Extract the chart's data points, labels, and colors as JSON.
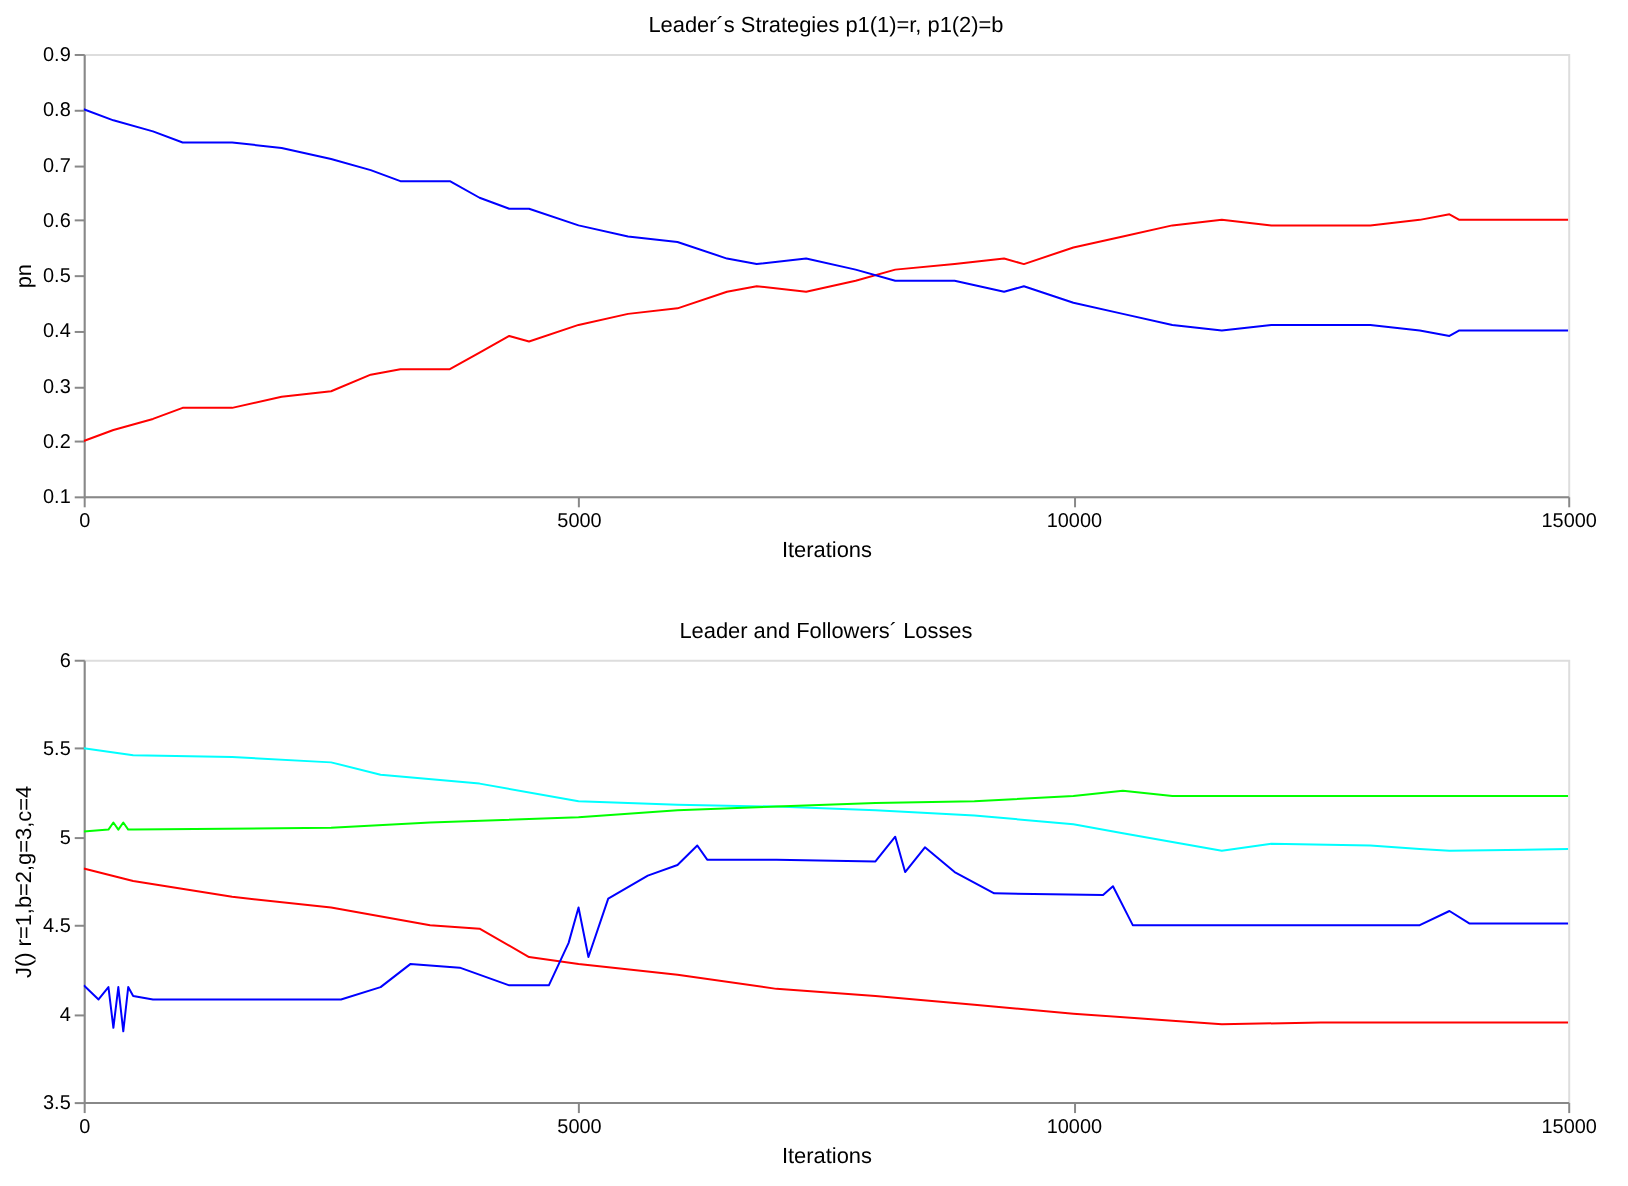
{
  "chart_data": [
    {
      "type": "line",
      "title": "Leader´s Strategies p1(1)=r, p1(2)=b",
      "xlabel": "Iterations",
      "ylabel": "pn",
      "xlim": [
        0,
        15000
      ],
      "xticks": [
        0,
        5000,
        10000,
        15000
      ],
      "ylim": [
        0.1,
        0.9
      ],
      "yticks": [
        0.1,
        0.2,
        0.3,
        0.4,
        0.5,
        0.6,
        0.7,
        0.8,
        0.9
      ],
      "grid": false,
      "legend": false,
      "marker": "none",
      "line_style": "solid",
      "x": [
        0,
        300,
        700,
        1000,
        1500,
        2000,
        2500,
        2900,
        3200,
        3700,
        4000,
        4300,
        4500,
        5000,
        5500,
        6000,
        6500,
        6800,
        7300,
        7800,
        8200,
        8800,
        9300,
        9500,
        10000,
        10500,
        11000,
        11500,
        12000,
        12500,
        13000,
        13500,
        13800,
        13900,
        15000
      ],
      "series": [
        {
          "color": "#ff0000",
          "values": [
            0.2,
            0.22,
            0.24,
            0.26,
            0.26,
            0.28,
            0.29,
            0.32,
            0.33,
            0.33,
            0.36,
            0.39,
            0.38,
            0.41,
            0.43,
            0.44,
            0.47,
            0.48,
            0.47,
            0.49,
            0.51,
            0.52,
            0.53,
            0.52,
            0.55,
            0.57,
            0.59,
            0.6,
            0.59,
            0.59,
            0.59,
            0.6,
            0.61,
            0.6,
            0.6
          ]
        },
        {
          "color": "#0000ff",
          "values": [
            0.8,
            0.78,
            0.76,
            0.74,
            0.74,
            0.73,
            0.71,
            0.69,
            0.67,
            0.67,
            0.64,
            0.62,
            0.62,
            0.59,
            0.57,
            0.56,
            0.53,
            0.52,
            0.53,
            0.51,
            0.49,
            0.49,
            0.47,
            0.48,
            0.45,
            0.43,
            0.41,
            0.4,
            0.41,
            0.41,
            0.41,
            0.4,
            0.39,
            0.4,
            0.4
          ]
        }
      ]
    },
    {
      "type": "line",
      "title": "Leader and Followers´ Losses",
      "xlabel": "Iterations",
      "ylabel": "J() r=1,b=2,g=3,c=4",
      "xlim": [
        0,
        15000
      ],
      "xticks": [
        0,
        5000,
        10000,
        15000
      ],
      "ylim": [
        3.5,
        6
      ],
      "yticks": [
        3.5,
        4,
        4.5,
        5,
        5.5,
        6
      ],
      "grid": false,
      "legend": false,
      "marker": "none",
      "line_style": "solid",
      "series": [
        {
          "color": "#00ffff",
          "x": [
            0,
            500,
            1500,
            2500,
            3000,
            4000,
            5000,
            6000,
            7000,
            8000,
            9000,
            10000,
            10500,
            11000,
            11500,
            12000,
            13000,
            13500,
            13800,
            15000
          ],
          "values": [
            5.5,
            5.46,
            5.45,
            5.42,
            5.35,
            5.3,
            5.2,
            5.18,
            5.17,
            5.15,
            5.12,
            5.07,
            5.02,
            4.97,
            4.92,
            4.96,
            4.95,
            4.93,
            4.92,
            4.93
          ]
        },
        {
          "color": "#00ff00",
          "x": [
            0,
            250,
            300,
            350,
            400,
            450,
            500,
            2500,
            3500,
            5000,
            6000,
            7000,
            8000,
            9000,
            10000,
            10500,
            11000,
            15000
          ],
          "values": [
            5.03,
            5.04,
            5.08,
            5.04,
            5.08,
            5.04,
            5.04,
            5.05,
            5.08,
            5.11,
            5.15,
            5.17,
            5.19,
            5.2,
            5.23,
            5.26,
            5.23,
            5.23
          ]
        },
        {
          "color": "#ff0000",
          "x": [
            0,
            500,
            1500,
            2500,
            3500,
            4000,
            4500,
            5000,
            6000,
            7000,
            8000,
            9000,
            10000,
            11000,
            11500,
            12500,
            13500,
            15000
          ],
          "values": [
            4.82,
            4.75,
            4.66,
            4.6,
            4.5,
            4.48,
            4.32,
            4.28,
            4.22,
            4.14,
            4.1,
            4.05,
            4.0,
            3.96,
            3.94,
            3.95,
            3.95,
            3.95
          ]
        },
        {
          "color": "#0000ff",
          "x": [
            0,
            150,
            250,
            300,
            350,
            400,
            450,
            500,
            700,
            2600,
            3000,
            3300,
            3800,
            4300,
            4700,
            4900,
            5000,
            5100,
            5300,
            5700,
            6000,
            6200,
            6300,
            7000,
            8000,
            8200,
            8300,
            8500,
            8800,
            9200,
            10300,
            10400,
            10600,
            11000,
            13500,
            13800,
            14000,
            15000
          ],
          "values": [
            4.16,
            4.08,
            4.15,
            3.92,
            4.15,
            3.9,
            4.15,
            4.1,
            4.08,
            4.08,
            4.15,
            4.28,
            4.26,
            4.16,
            4.16,
            4.4,
            4.6,
            4.32,
            4.65,
            4.78,
            4.84,
            4.95,
            4.87,
            4.87,
            4.86,
            5.0,
            4.8,
            4.94,
            4.8,
            4.68,
            4.67,
            4.72,
            4.5,
            4.5,
            4.5,
            4.58,
            4.51,
            4.51
          ]
        }
      ]
    }
  ]
}
